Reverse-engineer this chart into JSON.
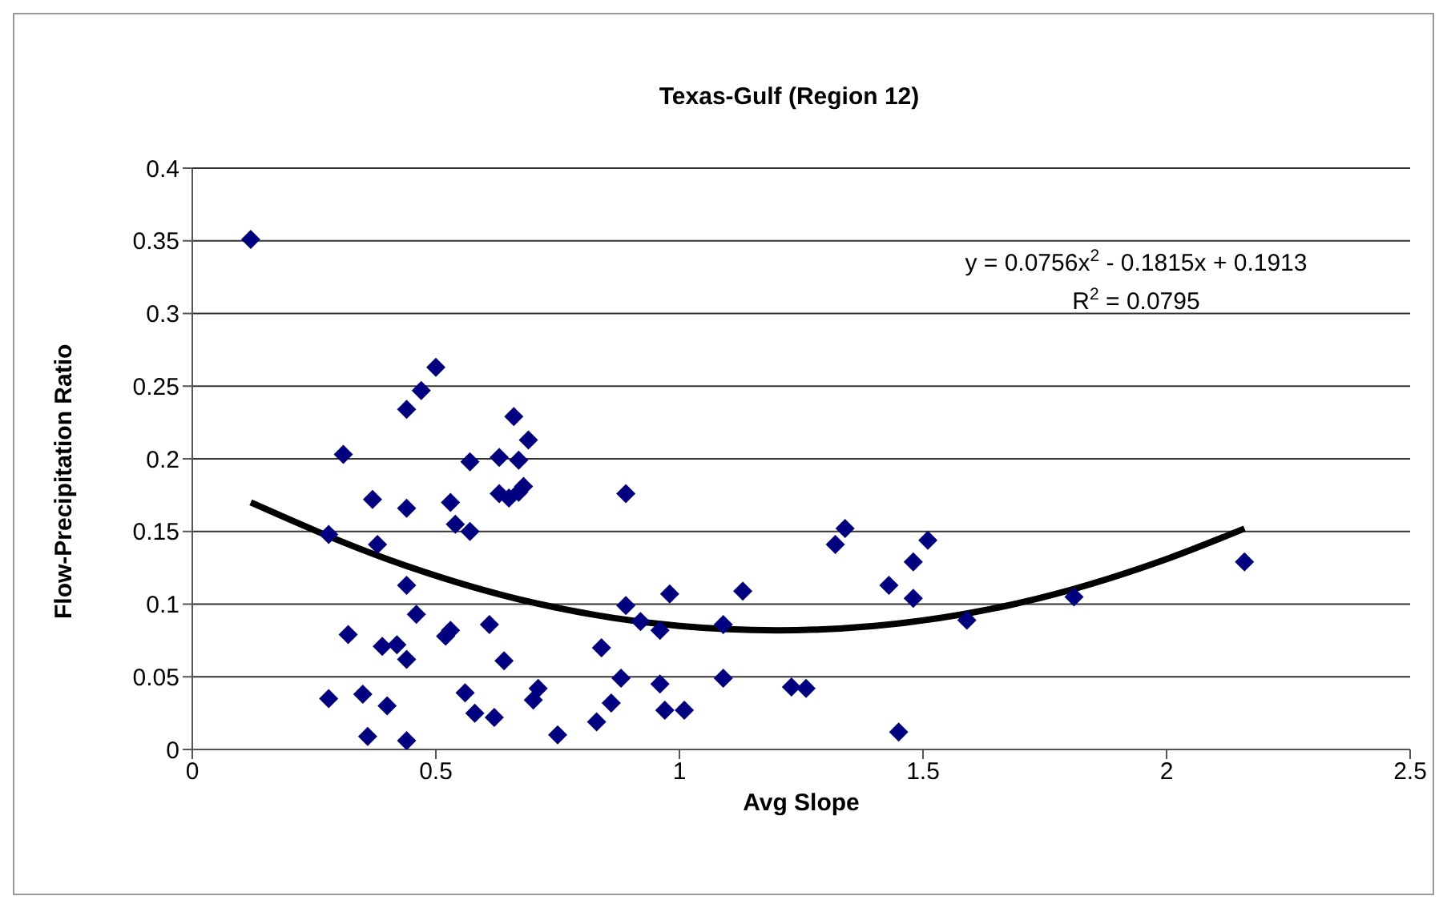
{
  "chart_data": {
    "type": "scatter",
    "title": "Texas-Gulf (Region 12)",
    "xlabel": "Avg Slope",
    "ylabel": "Flow-Precipitation Ratio",
    "xlim": [
      0,
      2.5
    ],
    "xticks": [
      0,
      0.5,
      1,
      1.5,
      2,
      2.5
    ],
    "ylim": [
      0,
      0.4
    ],
    "yticks": [
      0,
      0.05,
      0.1,
      0.15,
      0.2,
      0.25,
      0.3,
      0.35,
      0.4
    ],
    "grid": "y",
    "legend": false,
    "marker": "diamond",
    "annotations": [
      "y = 0.0756x$^{2}$ - 0.1815x + 0.1913",
      "R$^{2}$ = 0.0795"
    ],
    "series": [
      {
        "color": "#000080",
        "x": [
          0.12,
          0.28,
          0.28,
          0.31,
          0.32,
          0.35,
          0.36,
          0.37,
          0.38,
          0.39,
          0.4,
          0.42,
          0.44,
          0.44,
          0.44,
          0.44,
          0.44,
          0.46,
          0.47,
          0.5,
          0.52,
          0.53,
          0.53,
          0.54,
          0.56,
          0.57,
          0.57,
          0.58,
          0.61,
          0.62,
          0.63,
          0.64,
          0.63,
          0.65,
          0.66,
          0.67,
          0.67,
          0.68,
          0.69,
          0.7,
          0.71,
          0.75,
          0.83,
          0.84,
          0.86,
          0.88,
          0.89,
          0.89,
          0.92,
          0.96,
          0.96,
          0.97,
          0.98,
          1.01,
          1.09,
          1.09,
          1.13,
          1.23,
          1.26,
          1.32,
          1.34,
          1.43,
          1.45,
          1.48,
          1.48,
          1.51,
          1.59,
          1.81,
          2.16
        ],
        "values": [
          0.351,
          0.148,
          0.035,
          0.203,
          0.079,
          0.038,
          0.009,
          0.172,
          0.141,
          0.071,
          0.03,
          0.072,
          0.006,
          0.062,
          0.113,
          0.166,
          0.234,
          0.093,
          0.247,
          0.263,
          0.078,
          0.082,
          0.17,
          0.155,
          0.039,
          0.15,
          0.198,
          0.025,
          0.086,
          0.022,
          0.201,
          0.061,
          0.176,
          0.173,
          0.229,
          0.177,
          0.199,
          0.181,
          0.213,
          0.034,
          0.042,
          0.01,
          0.019,
          0.07,
          0.032,
          0.049,
          0.099,
          0.176,
          0.088,
          0.045,
          0.082,
          0.027,
          0.107,
          0.027,
          0.086,
          0.049,
          0.109,
          0.043,
          0.042,
          0.141,
          0.152,
          0.113,
          0.012,
          0.104,
          0.129,
          0.144,
          0.089,
          0.105,
          0.129
        ]
      },
      {
        "type": "line",
        "color": "#000000",
        "marker": "none",
        "line_style": "solid",
        "x": [
          0.12,
          0.4,
          0.7,
          1.0,
          1.2,
          1.4,
          1.7,
          2.0,
          2.16
        ],
        "values": [
          0.17,
          0.131,
          0.101,
          0.085,
          0.082,
          0.085,
          0.101,
          0.131,
          0.152
        ]
      }
    ]
  }
}
